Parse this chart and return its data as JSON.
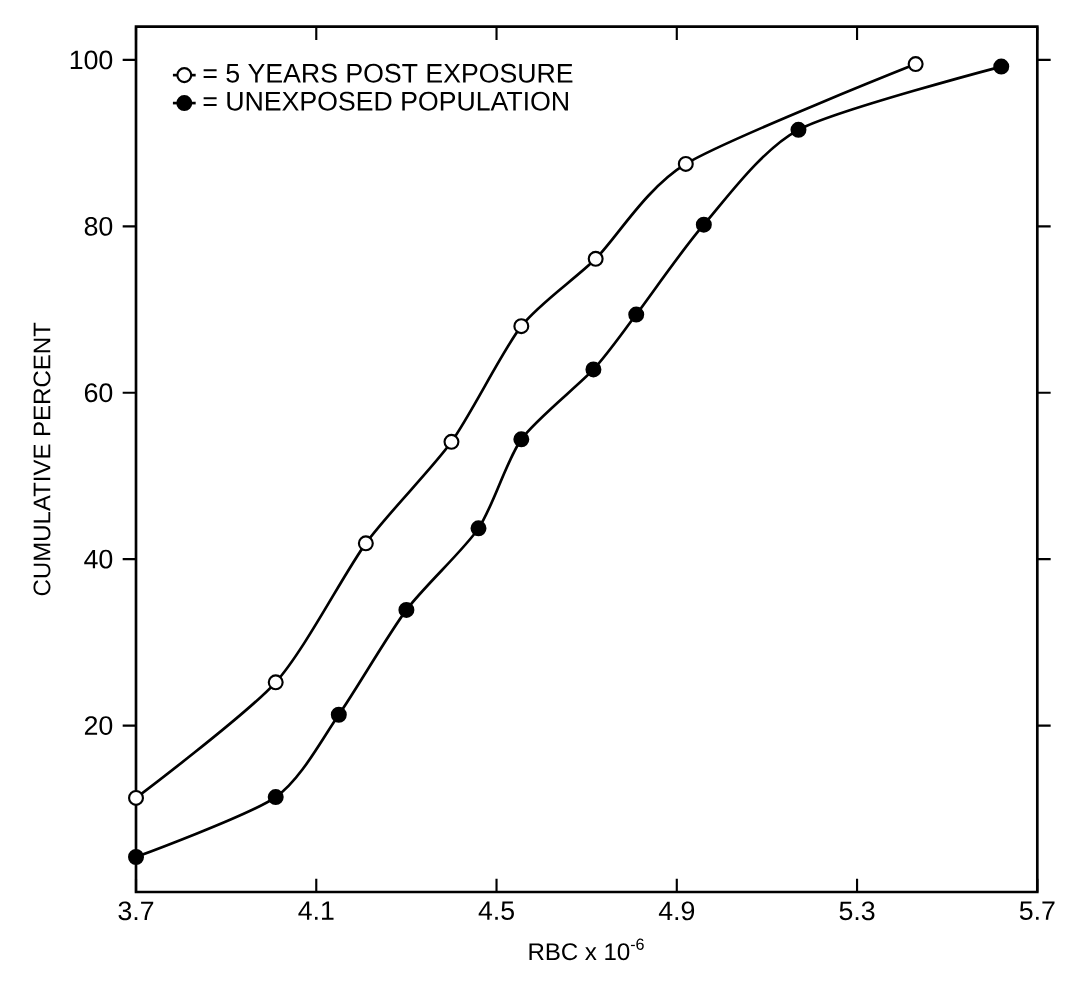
{
  "chart_data": {
    "type": "line",
    "xlabel": "RBC x 10$^{-6}$",
    "ylabel": "CUMULATIVE  PERCENT",
    "xlim": [
      3.7,
      5.7
    ],
    "ylim": [
      0,
      104
    ],
    "xticks": [
      3.7,
      4.1,
      4.5,
      4.9,
      5.3,
      5.7
    ],
    "yticks": [
      20,
      40,
      60,
      80,
      100
    ],
    "grid": false,
    "legend": "top left",
    "marker": "circle",
    "line_style": "solid",
    "series": [
      {
        "name": "= 5 YEARS POST EXPOSURE",
        "color": "#000000",
        "x": [
          3.7,
          4.01,
          4.21,
          4.4,
          4.555,
          4.72,
          4.92,
          5.43
        ],
        "values": [
          11.3,
          25.2,
          41.9,
          54.1,
          68.0,
          76.1,
          87.5,
          99.5
        ]
      },
      {
        "name": "= UNEXPOSED POPULATION",
        "color": "#000000",
        "x": [
          3.7,
          4.01,
          4.15,
          4.3,
          4.46,
          4.555,
          4.715,
          4.81,
          4.96,
          5.17,
          5.62
        ],
        "values": [
          4.2,
          11.4,
          21.3,
          33.9,
          43.7,
          54.4,
          62.8,
          69.4,
          80.2,
          91.6,
          99.2
        ]
      }
    ]
  }
}
